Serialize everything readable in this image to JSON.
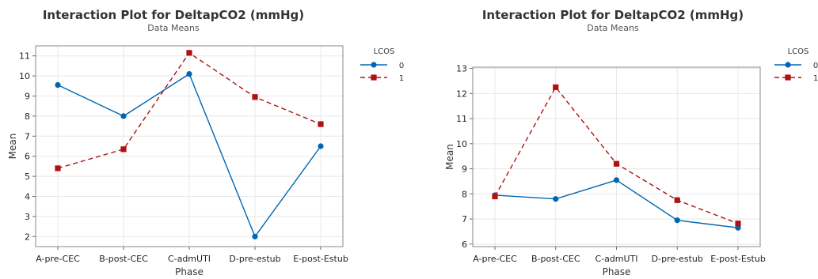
{
  "chart_data": [
    {
      "type": "line",
      "title": "Interaction Plot for DeltapCO2 (mmHg)",
      "subtitle": "Data Means",
      "xlabel": "Phase",
      "ylabel": "Mean",
      "categories": [
        "A-pre-CEC",
        "B-post-CEC",
        "C-admUTI",
        "D-pre-estub",
        "E-post-Estub"
      ],
      "ylim": [
        1.5,
        11.5
      ],
      "yticks": [
        2,
        3,
        4,
        5,
        6,
        7,
        8,
        9,
        10,
        11
      ],
      "grid": true,
      "legend": {
        "title": "LCOS",
        "position": "top-right"
      },
      "series": [
        {
          "name": "0",
          "values": [
            9.55,
            8.0,
            10.1,
            2.0,
            6.5
          ],
          "color": "#0066B3",
          "marker": "circle",
          "dash": "solid"
        },
        {
          "name": "1",
          "values": [
            5.4,
            6.35,
            11.15,
            8.95,
            7.6
          ],
          "color": "#B01010",
          "marker": "square",
          "dash": "dashed"
        }
      ]
    },
    {
      "type": "line",
      "title": "Interaction Plot for DeltapCO2 (mmHg)",
      "subtitle": "Data Means",
      "xlabel": "Phase",
      "ylabel": "Mean",
      "categories": [
        "A-pre-CEC",
        "B-post-CEC",
        "C-admUTI",
        "D-pre-estub",
        "E-post-Estub"
      ],
      "ylim": [
        5.9,
        13.05
      ],
      "yticks": [
        6,
        7,
        8,
        9,
        10,
        11,
        12,
        13
      ],
      "grid": true,
      "legend": {
        "title": "LCOS",
        "position": "top-right"
      },
      "series": [
        {
          "name": "0",
          "values": [
            7.95,
            7.8,
            8.55,
            6.95,
            6.65
          ],
          "color": "#0066B3",
          "marker": "circle",
          "dash": "solid"
        },
        {
          "name": "1",
          "values": [
            7.9,
            12.25,
            9.2,
            7.75,
            6.82
          ],
          "color": "#B01010",
          "marker": "square",
          "dash": "dashed"
        }
      ]
    }
  ]
}
